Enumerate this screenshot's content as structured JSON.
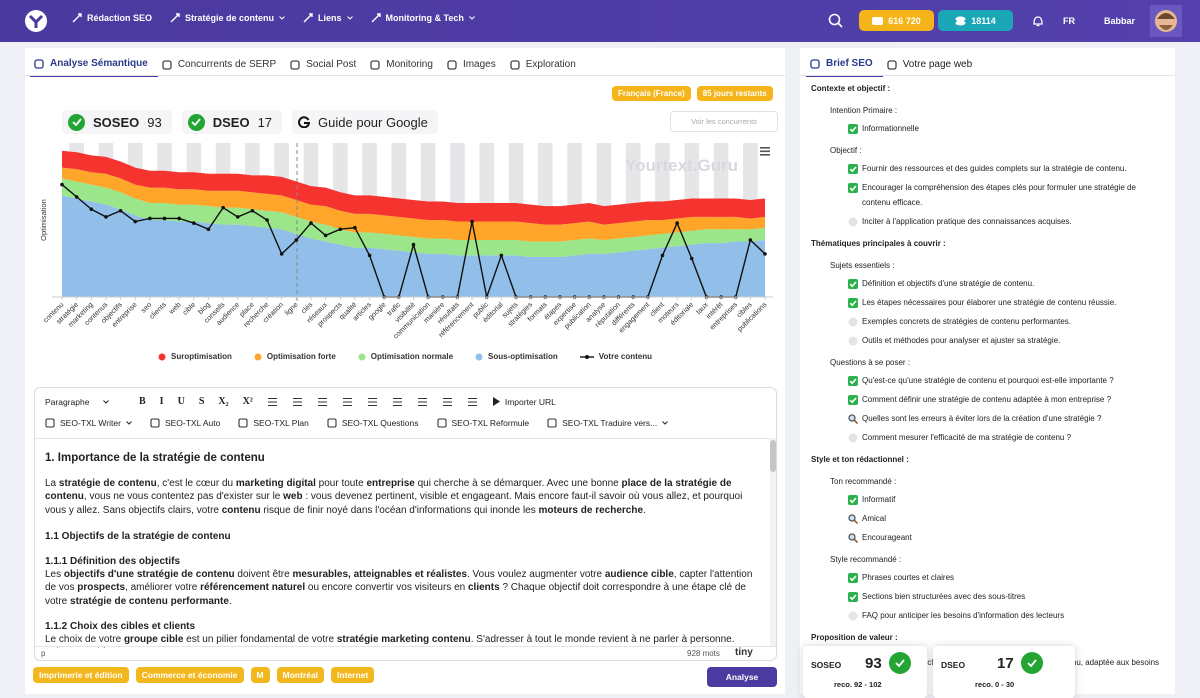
{
  "nav": {
    "items": [
      {
        "label": "Rédaction SEO",
        "dropdown": false
      },
      {
        "label": "Stratégie de contenu",
        "dropdown": true
      },
      {
        "label": "Liens",
        "dropdown": true
      },
      {
        "label": "Monitoring & Tech",
        "dropdown": true
      }
    ],
    "credits": "616 720",
    "tokens": "18114",
    "lang": "FR",
    "user": "Babbar"
  },
  "left_tabs": {
    "active": 0,
    "items": [
      "Analyse Sémantique",
      "Concurrents de SERP",
      "Social Post",
      "Monitoring",
      "Images",
      "Exploration"
    ]
  },
  "badges": [
    "Français (France)",
    "85 jours restants"
  ],
  "scores": [
    {
      "label": "SOSEO",
      "value": 93,
      "reco": "reco. 92 - 102"
    },
    {
      "label": "DSEO",
      "value": 17,
      "reco": "reco. 0 - 30"
    }
  ],
  "guide": "Guide pour Google",
  "competitors_button": "Voir les concurrents",
  "watermark": "Yourtext.Guru",
  "chart_data": {
    "type": "area",
    "stacked": true,
    "y_label": "Optimisation",
    "ylim": [
      0,
      100
    ],
    "categories": [
      "contenu",
      "stratégie",
      "marketing",
      "contenus",
      "objectifs",
      "entreprise",
      "seo",
      "clients",
      "web",
      "cible",
      "blog",
      "conseils",
      "audience",
      "place",
      "recherche",
      "création",
      "ligne",
      "clés",
      "réseaux",
      "prospects",
      "qualité",
      "articles",
      "google",
      "trafic",
      "visibilité",
      "communication",
      "manière",
      "résultats",
      "référencement",
      "public",
      "éditorial",
      "sujets",
      "stratégies",
      "formats",
      "étapes",
      "expertise",
      "publication",
      "analyse",
      "réputation",
      "différents",
      "engagement",
      "client",
      "moteurs",
      "éditoriale",
      "taux",
      "intérêt",
      "entreprises",
      "cibles",
      "publications"
    ],
    "series": [
      {
        "name": "Suroptimisation",
        "type": "area",
        "color": "#f5332f",
        "values": [
          11,
          11,
          11,
          11,
          11,
          11,
          11,
          11,
          11,
          11,
          11,
          11,
          11,
          11,
          12,
          12,
          12,
          12,
          12,
          12,
          12,
          12,
          12,
          12,
          12,
          12,
          12,
          12,
          12,
          12,
          12,
          12,
          12,
          12,
          12,
          12,
          12,
          12,
          12,
          12,
          12,
          12,
          12,
          12,
          12,
          12,
          12,
          12,
          12
        ]
      },
      {
        "name": "Optimisation forte",
        "type": "area",
        "color": "#ffa52a",
        "values": [
          7,
          8,
          8,
          9,
          9,
          9,
          10,
          10,
          10,
          10,
          10,
          11,
          11,
          11,
          11,
          11,
          11,
          11,
          12,
          12,
          12,
          12,
          12,
          12,
          12,
          12,
          12,
          12,
          12,
          12,
          12,
          12,
          12,
          11,
          11,
          11,
          11,
          10,
          10,
          10,
          10,
          9,
          9,
          9,
          8,
          8,
          8,
          7,
          7
        ]
      },
      {
        "name": "Optimisation normale",
        "type": "area",
        "color": "#9be68a",
        "values": [
          11,
          11,
          11,
          11,
          11,
          11,
          11,
          11,
          11,
          11,
          11,
          11,
          11,
          11,
          11,
          11,
          11,
          11,
          11,
          10,
          10,
          10,
          10,
          10,
          10,
          10,
          10,
          10,
          10,
          10,
          10,
          10,
          10,
          10,
          10,
          10,
          10,
          9,
          9,
          9,
          9,
          9,
          9,
          9,
          9,
          9,
          8,
          8,
          8
        ]
      },
      {
        "name": "Sous-optimisation",
        "type": "area",
        "color": "#92bfea",
        "values": [
          66,
          64,
          62,
          60,
          57,
          53,
          50,
          50,
          49,
          49,
          48,
          47,
          47,
          46,
          45,
          44,
          41,
          38,
          36,
          34,
          32,
          32,
          31,
          30,
          29,
          28,
          28,
          27,
          27,
          27,
          27,
          27,
          26,
          26,
          26,
          27,
          28,
          28,
          29,
          30,
          31,
          32,
          33,
          34,
          35,
          35,
          36,
          36,
          37
        ]
      },
      {
        "name": "Votre contenu",
        "type": "line",
        "color": "#111111",
        "values": [
          73,
          65,
          57,
          52,
          56,
          49,
          51,
          51,
          51,
          48,
          44,
          58,
          52,
          56,
          50,
          28,
          37,
          48,
          40,
          44,
          45,
          27,
          0,
          0,
          34,
          0,
          0,
          0,
          49,
          0,
          27,
          0,
          0,
          0,
          0,
          0,
          0,
          0,
          0,
          0,
          0,
          27,
          48,
          25,
          0,
          0,
          0,
          37,
          28
        ]
      }
    ]
  },
  "toolbar": {
    "format": "Paragraphe",
    "format_buttons": [
      "B",
      "I",
      "U",
      "S",
      "X₂",
      "X²"
    ],
    "import": "Importer URL",
    "tools": [
      "SEO-TXL Writer",
      "SEO-TXL Auto",
      "SEO-TXL Plan",
      "SEO-TXL Questions",
      "SEO-TXL Reformule",
      "SEO-TXL Traduire vers..."
    ]
  },
  "editor": {
    "blocks": [
      {
        "tag": "h1",
        "parts": [
          "1. Importance de la stratégie de contenu"
        ]
      },
      {
        "tag": "p",
        "parts": [
          "La ",
          {
            "b": "stratégie de contenu"
          },
          ", c'est le cœur du ",
          {
            "b": "marketing digital"
          },
          " pour toute ",
          {
            "b": "entreprise"
          },
          " qui cherche à se démarquer. Avec une bonne ",
          {
            "b": "place de la stratégie de contenu"
          },
          ", vous ne vous contentez pas d'exister sur le ",
          {
            "b": "web"
          },
          " : vous devenez pertinent, visible et engageant. Mais encore faut-il savoir où vous allez, et pourquoi vous y allez. Sans objectifs clairs, votre ",
          {
            "b": "contenu"
          },
          " risque de finir noyé dans l'océan d'informations qui inonde les ",
          {
            "b": "moteurs de recherche"
          },
          "."
        ]
      },
      {
        "tag": "h2",
        "parts": [
          "1.1 Objectifs de la stratégie de contenu"
        ]
      },
      {
        "tag": "h3",
        "parts": [
          "1.1.1 Définition des objectifs"
        ]
      },
      {
        "tag": "p",
        "parts": [
          "Les ",
          {
            "b": "objectifs d'une stratégie de contenu"
          },
          " doivent être ",
          {
            "b": "mesurables, atteignables et réalistes"
          },
          ". Vous voulez augmenter votre ",
          {
            "b": "audience cible"
          },
          ", capter l'attention de vos ",
          {
            "b": "prospects"
          },
          ", améliorer votre ",
          {
            "b": "référencement naturel"
          },
          " ou encore convertir vos visiteurs en ",
          {
            "b": "clients"
          },
          " ? Chaque objectif doit correspondre à une étape clé de votre ",
          {
            "b": "stratégie de contenu performante"
          },
          "."
        ]
      },
      {
        "tag": "h3",
        "parts": [
          "1.1.2 Choix des cibles et clients"
        ]
      },
      {
        "tag": "p",
        "parts": [
          "Le choix de votre ",
          {
            "b": "groupe cible"
          },
          " est un pilier fondamental de votre ",
          {
            "b": "stratégie marketing contenu"
          },
          ". S'adresser à tout le monde revient à ne parler à personne. Faites appel à"
        ]
      }
    ],
    "path": "p",
    "word_count": "928 mots",
    "brand": "tiny"
  },
  "tags": [
    "Imprimerie et édition",
    "Commerce et économie",
    "M",
    "Montréal",
    "Internet"
  ],
  "analyse_button": "Analyse",
  "right_tabs": {
    "active": 0,
    "items": [
      "Brief SEO",
      "Votre page web"
    ]
  },
  "brief": {
    "sections": [
      {
        "title": "Contexte et objectif :",
        "groups": [
          {
            "title": "Intention Primaire :",
            "items": [
              {
                "text": "Informationnelle",
                "status": "check"
              }
            ]
          },
          {
            "title": "Objectif :",
            "items": [
              {
                "text": "Fournir des ressources et des guides complets sur la stratégie de contenu.",
                "status": "check"
              },
              {
                "text": "Encourager la compréhension des étapes clés pour formuler une stratégie de contenu efficace.",
                "status": "check"
              },
              {
                "text": "Inciter à l'application pratique des connaissances acquises.",
                "status": "neutral"
              }
            ]
          }
        ]
      },
      {
        "title": "Thématiques principales à couvrir :",
        "groups": [
          {
            "title": "Sujets essentiels :",
            "items": [
              {
                "text": "Définition et objectifs d'une stratégie de contenu.",
                "status": "check"
              },
              {
                "text": "Les étapes nécessaires pour élaborer une stratégie de contenu réussie.",
                "status": "check"
              },
              {
                "text": "Exemples concrets de stratégies de contenu performantes.",
                "status": "neutral"
              },
              {
                "text": "Outils et méthodes pour analyser et ajuster sa stratégie.",
                "status": "neutral"
              }
            ]
          },
          {
            "title": "Questions à se poser :",
            "items": [
              {
                "text": "Qu'est-ce qu'une stratégie de contenu et pourquoi est-elle importante ?",
                "status": "check"
              },
              {
                "text": "Comment définir une stratégie de contenu adaptée à mon entreprise ?",
                "status": "check"
              },
              {
                "text": "Quelles sont les erreurs à éviter lors de la création d'une stratégie ?",
                "status": "search"
              },
              {
                "text": "Comment mesurer l'efficacité de ma stratégie de contenu ?",
                "status": "neutral"
              }
            ]
          }
        ]
      },
      {
        "title": "Style et ton rédactionnel :",
        "groups": [
          {
            "title": "Ton recommandé :",
            "items": [
              {
                "text": "Informatif",
                "status": "check"
              },
              {
                "text": "Amical",
                "status": "search"
              },
              {
                "text": "Encourageant",
                "status": "search"
              }
            ]
          },
          {
            "title": "Style recommandé :",
            "items": [
              {
                "text": "Phrases courtes et claires",
                "status": "check"
              },
              {
                "text": "Sections bien structurées avec des sous-titres",
                "status": "check"
              },
              {
                "text": "FAQ pour anticiper les besoins d'information des lecteurs",
                "status": "neutral"
              }
            ]
          }
        ]
      },
      {
        "title": "Proposition de valeur :",
        "items": [
          {
            "text": "Offrir une compréhension claire et pratique de la stratégie de contenu, adaptée aux besoins variés des entreprises.",
            "status": "check"
          }
        ]
      }
    ]
  }
}
